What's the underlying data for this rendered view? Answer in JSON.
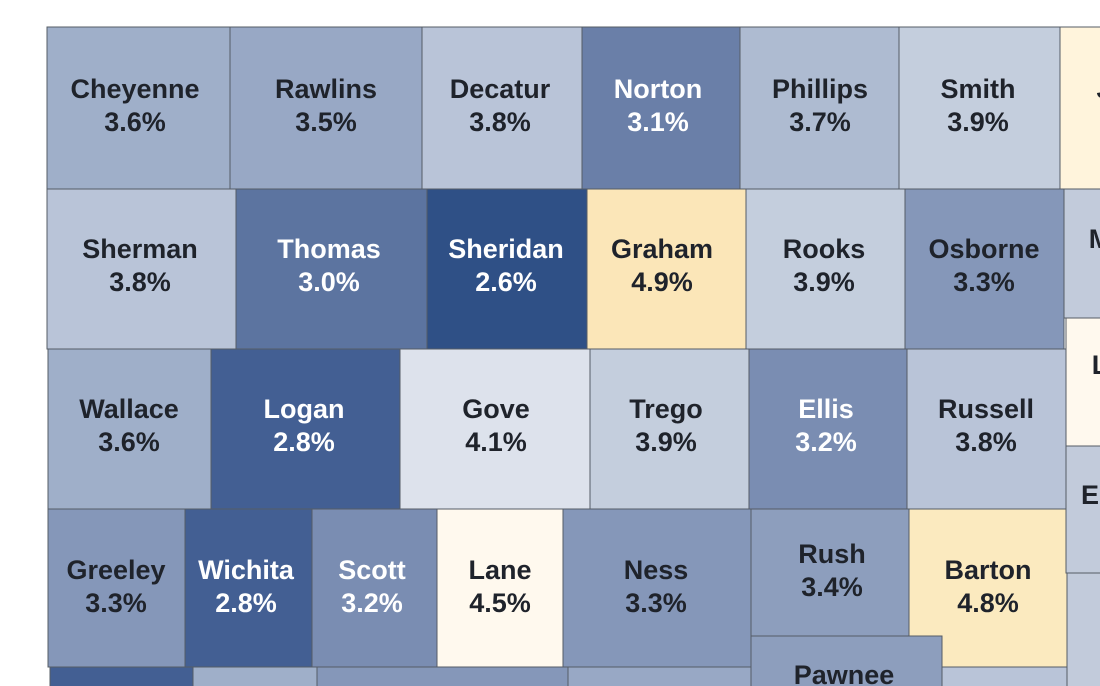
{
  "map": {
    "colors": {
      "c26": "#2f5086",
      "c28": "#435f93",
      "c30": "#5c74a0",
      "c31": "#6a7fa8",
      "c32": "#7a8db2",
      "c33": "#8597b9",
      "c34": "#8d9ebd",
      "c35": "#98a8c5",
      "c36": "#9fafc9",
      "c37": "#aebbd1",
      "c38": "#b9c4d8",
      "c39": "#c4cedd",
      "c41": "#dde2ec",
      "c45": "#fff9ee",
      "c48": "#fbeabf",
      "c49": "#fbe6b8",
      "edge": "#c2cbdb",
      "edgeWarm": "#fff4dc"
    },
    "counties": [
      {
        "name": "Cheyenne",
        "value": "3.6%",
        "fill": "c36"
      },
      {
        "name": "Rawlins",
        "value": "3.5%",
        "fill": "c35"
      },
      {
        "name": "Decatur",
        "value": "3.8%",
        "fill": "c38"
      },
      {
        "name": "Norton",
        "value": "3.1%",
        "fill": "c31"
      },
      {
        "name": "Phillips",
        "value": "3.7%",
        "fill": "c37"
      },
      {
        "name": "Smith",
        "value": "3.9%",
        "fill": "c39"
      },
      {
        "name": "Sherman",
        "value": "3.8%",
        "fill": "c38"
      },
      {
        "name": "Thomas",
        "value": "3.0%",
        "fill": "c30"
      },
      {
        "name": "Sheridan",
        "value": "2.6%",
        "fill": "c26"
      },
      {
        "name": "Graham",
        "value": "4.9%",
        "fill": "c49"
      },
      {
        "name": "Rooks",
        "value": "3.9%",
        "fill": "c39"
      },
      {
        "name": "Osborne",
        "value": "3.3%",
        "fill": "c33"
      },
      {
        "name": "Wallace",
        "value": "3.6%",
        "fill": "c36"
      },
      {
        "name": "Logan",
        "value": "2.8%",
        "fill": "c28"
      },
      {
        "name": "Gove",
        "value": "4.1%",
        "fill": "c41"
      },
      {
        "name": "Trego",
        "value": "3.9%",
        "fill": "c39"
      },
      {
        "name": "Ellis",
        "value": "3.2%",
        "fill": "c32"
      },
      {
        "name": "Russell",
        "value": "3.8%",
        "fill": "c38"
      },
      {
        "name": "Greeley",
        "value": "3.3%",
        "fill": "c33"
      },
      {
        "name": "Wichita",
        "value": "2.8%",
        "fill": "c28"
      },
      {
        "name": "Scott",
        "value": "3.2%",
        "fill": "c32"
      },
      {
        "name": "Lane",
        "value": "4.5%",
        "fill": "c45"
      },
      {
        "name": "Ness",
        "value": "3.3%",
        "fill": "c33"
      },
      {
        "name": "Rush",
        "value": "3.4%",
        "fill": "c34"
      },
      {
        "name": "Barton",
        "value": "4.8%",
        "fill": "c48"
      },
      {
        "name": "Pawnee",
        "value": "",
        "fill": "c34"
      }
    ],
    "edge_fragments": [
      {
        "label": "J",
        "fill": "edgeWarm"
      },
      {
        "label": "M",
        "fill": "edge"
      },
      {
        "label": "L",
        "fill": "c45"
      },
      {
        "label": "E",
        "fill": "edge"
      },
      {
        "label": "",
        "fill": "edge"
      }
    ]
  }
}
